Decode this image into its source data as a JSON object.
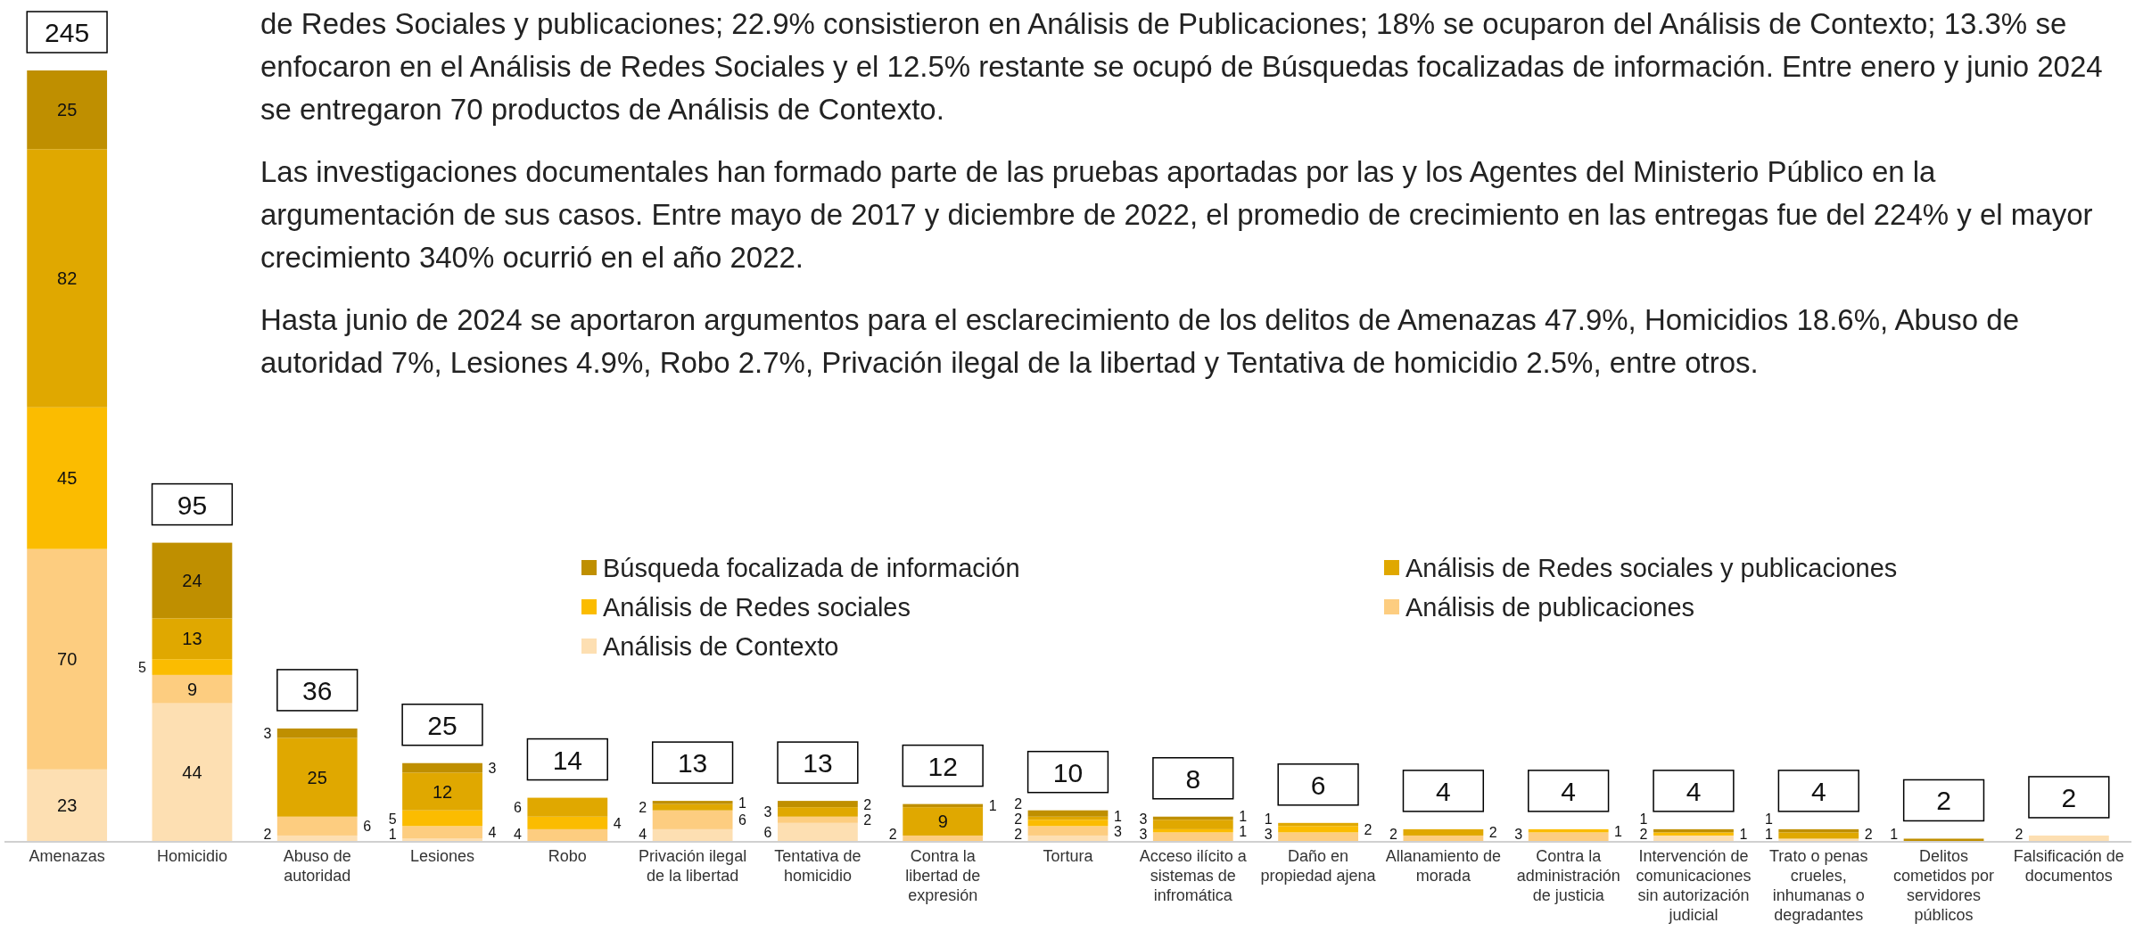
{
  "chart_data": {
    "type": "bar",
    "stacked": true,
    "data_labels": true,
    "legend": "bottom right",
    "annotations": [
      "de Redes Sociales y publicaciones; 22.9% consistieron en Análisis de Publicaciones; 18% se ocuparon del Análisis de Contexto; 13.3% se enfocaron en el Análisis de Redes Sociales y el 12.5% restante se ocupó de Búsquedas focalizadas de información. Entre enero y junio 2024 se entregaron 70 productos de Análisis de Contexto.",
      "Las investigaciones documentales han formado parte de las pruebas aportadas por las y los Agentes del Ministerio Público en la argumentación de sus casos. Entre mayo de 2017 y diciembre de 2022, el promedio de crecimiento en las entregas fue del 224% y el mayor crecimiento 340% ocurrió en el año 2022.",
      "Hasta junio de 2024 se aportaron argumentos para el esclarecimiento de los delitos de Amenazas 47.9%, Homicidios 18.6%, Abuso de autoridad 7%, Lesiones 4.9%, Robo 2.7%, Privación ilegal de la libertad y Tentativa de homicidio 2.5%, entre otros."
    ],
    "categories": [
      "Amenazas",
      "Homicidio",
      "Abuso de autoridad",
      "Lesiones",
      "Robo",
      "Privación ilegal de la libertad",
      "Tentativa de homicidio",
      "Contra la libertad de expresión",
      "Tortura",
      "Acceso ilícito a sistemas de infromática",
      "Daño en propiedad ajena",
      "Allanamiento de morada",
      "Contra la administración de justicia",
      "Intervención de comunicaciones sin autorización judicial",
      "Trato o penas crueles, inhumanas o degradantes",
      "Delitos cometidos por servidores públicos",
      "Falsificación de documentos"
    ],
    "series": [
      {
        "name": "Análisis de Contexto",
        "color": "#fddfb2",
        "values": [
          23,
          44,
          2,
          1,
          null,
          4,
          6,
          null,
          2,
          null,
          null,
          null,
          null,
          2,
          1,
          null,
          2
        ]
      },
      {
        "name": "Análisis de publicaciones",
        "color": "#fdcd80",
        "values": [
          70,
          9,
          6,
          4,
          4,
          6,
          2,
          2,
          3,
          3,
          3,
          2,
          3,
          null,
          null,
          null,
          null
        ]
      },
      {
        "name": "Análisis de Redes sociales",
        "color": "#fbbc00",
        "values": [
          45,
          5,
          null,
          5,
          4,
          null,
          null,
          null,
          2,
          1,
          2,
          null,
          1,
          1,
          null,
          null,
          null
        ]
      },
      {
        "name": "Análisis de Redes sociales y publicaciones",
        "color": "#e0a800",
        "values": [
          82,
          13,
          25,
          12,
          6,
          2,
          3,
          9,
          1,
          3,
          1,
          2,
          null,
          null,
          2,
          null,
          null
        ]
      },
      {
        "name": "Búsqueda focalizada de información",
        "color": "#bf8f00",
        "values": [
          25,
          24,
          3,
          3,
          null,
          1,
          2,
          1,
          2,
          1,
          null,
          null,
          null,
          1,
          1,
          1,
          null
        ]
      }
    ],
    "totals": [
      "245",
      "95",
      "36",
      "25",
      "14",
      "13",
      "13",
      "12",
      "10",
      "8",
      "6",
      "4",
      "4",
      "4",
      "4",
      "2",
      "2"
    ]
  }
}
